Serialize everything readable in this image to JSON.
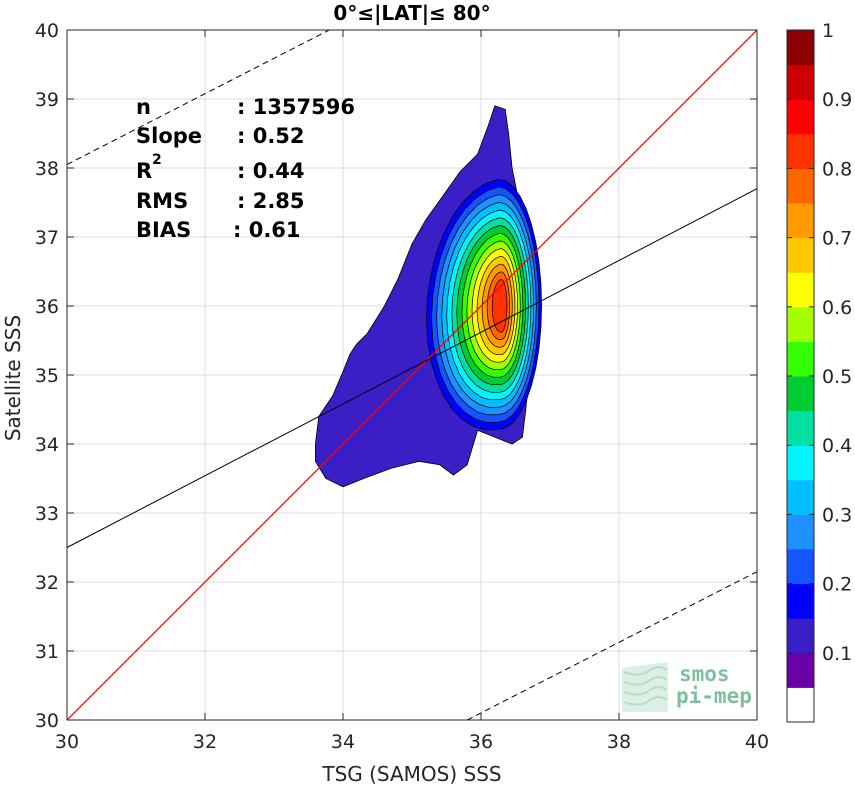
{
  "chart_data": {
    "type": "heatmap",
    "title": "0°≤|LAT|≤ 80°",
    "xlabel": "TSG (SAMOS) SSS",
    "ylabel": "Satellite SSS",
    "xlim": [
      30,
      40
    ],
    "ylim": [
      30,
      40
    ],
    "x_ticks": [
      "30",
      "32",
      "34",
      "36",
      "38",
      "40"
    ],
    "y_ticks": [
      "30",
      "31",
      "32",
      "33",
      "34",
      "35",
      "36",
      "37",
      "38",
      "39",
      "40"
    ],
    "grid": true,
    "stats": [
      {
        "label": "n",
        "value": ": 1357596"
      },
      {
        "label": "Slope",
        "value": ": 0.52"
      },
      {
        "label": "R",
        "superscript": "2",
        "value": ": 0.44"
      },
      {
        "label": "RMS",
        "value": ": 2.85"
      },
      {
        "label": "BIAS",
        "value": ": 0.61"
      }
    ],
    "lines": {
      "identity": {
        "slope": 1,
        "intercept": 0,
        "color": "#ff0000"
      },
      "fit": {
        "points": [
          [
            30,
            32.5
          ],
          [
            40,
            37.7
          ]
        ],
        "color": "#000000"
      },
      "upper_bound": {
        "points": [
          [
            30,
            38.05
          ],
          [
            33.8,
            40
          ]
        ],
        "color": "#000000",
        "style": "dashed"
      },
      "lower_bound": {
        "points": [
          [
            35.8,
            30
          ],
          [
            40,
            32.15
          ]
        ],
        "color": "#000000",
        "style": "dashed"
      }
    },
    "density_center": [
      36.3,
      36.0
    ],
    "colorbar": {
      "ticks": [
        "0.1",
        "0.2",
        "0.3",
        "0.4",
        "0.5",
        "0.6",
        "0.7",
        "0.8",
        "0.9",
        "1"
      ],
      "range": [
        0,
        1
      ],
      "levels": 14,
      "colors": [
        "#ffffff",
        "#6a00a8",
        "#3b1fc6",
        "#0000ff",
        "#1455ff",
        "#1e90ff",
        "#00bfff",
        "#00f5ff",
        "#00e0a0",
        "#00cc33",
        "#33ff00",
        "#a6ff00",
        "#ffff00",
        "#ffc800",
        "#ff9a00",
        "#ff6600",
        "#ff3300",
        "#ff0000",
        "#cc0000",
        "#8b0000"
      ]
    }
  },
  "logo": {
    "line1": "smos",
    "line2": "pi-mep"
  }
}
